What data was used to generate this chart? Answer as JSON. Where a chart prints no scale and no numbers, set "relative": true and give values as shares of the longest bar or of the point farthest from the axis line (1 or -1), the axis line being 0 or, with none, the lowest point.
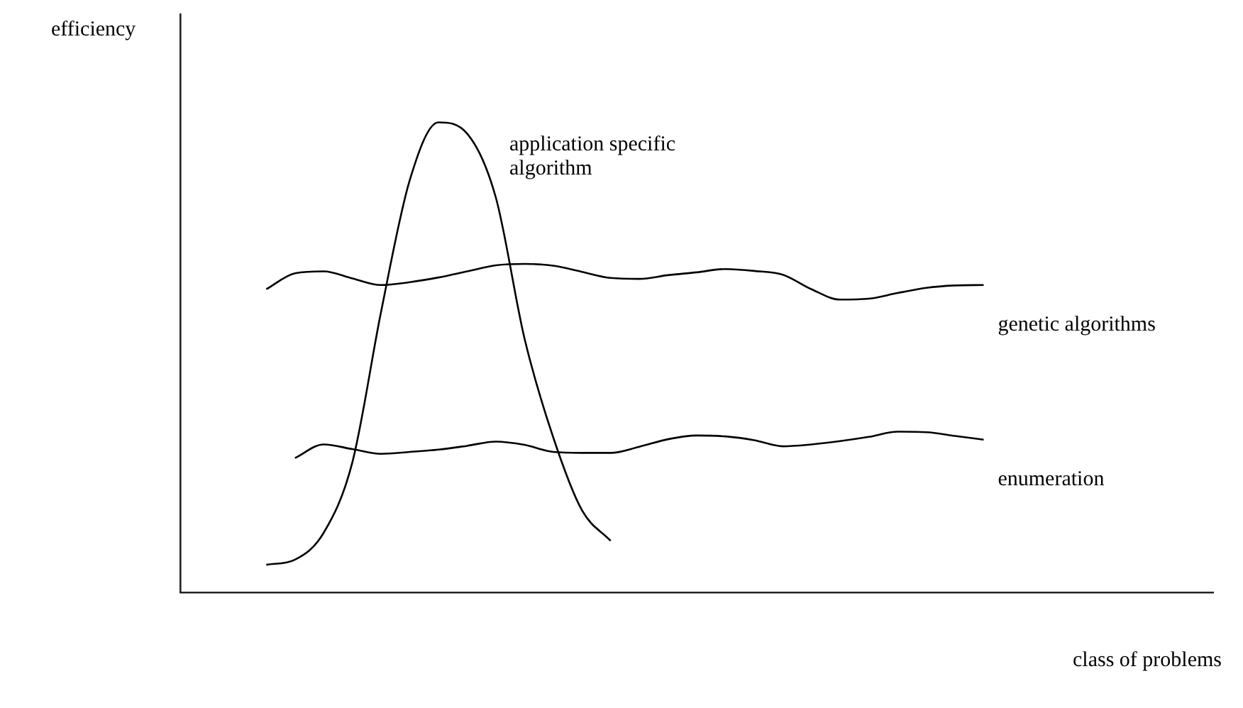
{
  "chart_data": {
    "type": "line",
    "relative": true,
    "xlabel": "class of problems",
    "ylabel": "efficiency",
    "grid": false,
    "legend": false,
    "marker": "none",
    "line_style": "solid",
    "categories": [
      null,
      null,
      null,
      null,
      null,
      null,
      null,
      null,
      null,
      null,
      null,
      null,
      null,
      null,
      null,
      null,
      null,
      null,
      null,
      null,
      null,
      null,
      null,
      null,
      null,
      null,
      null,
      null,
      null,
      null,
      null,
      null,
      null,
      null,
      null,
      null,
      null
    ],
    "series": [
      {
        "name": "application specific algorithm",
        "color": "#000000",
        "values": [
          null,
          null,
          null,
          0.059,
          0.07,
          0.127,
          0.277,
          0.597,
          0.877,
          1,
          0.976,
          0.84,
          0.54,
          0.33,
          0.175,
          0.11,
          null,
          null,
          null,
          null,
          null,
          null,
          null,
          null,
          null,
          null,
          null,
          null,
          null,
          null,
          null,
          null,
          null,
          null,
          null,
          null,
          null
        ]
      },
      {
        "name": "genetic algorithms",
        "color": "#000000",
        "values": [
          null,
          null,
          null,
          0.645,
          0.679,
          0.683,
          0.668,
          0.654,
          0.66,
          0.67,
          0.683,
          0.696,
          0.699,
          0.695,
          0.682,
          0.669,
          0.667,
          0.675,
          0.681,
          0.688,
          0.684,
          0.676,
          0.645,
          0.623,
          0.625,
          0.637,
          0.648,
          0.653,
          0.654,
          null,
          null,
          null,
          null,
          null,
          null,
          null,
          null
        ]
      },
      {
        "name": "enumeration",
        "color": "#000000",
        "values": [
          null,
          null,
          null,
          null,
          0.286,
          0.315,
          0.305,
          0.295,
          0.299,
          0.304,
          0.312,
          0.321,
          0.314,
          0.299,
          0.297,
          0.297,
          0.31,
          0.326,
          0.334,
          0.332,
          0.324,
          0.311,
          0.315,
          0.322,
          0.331,
          0.342,
          0.341,
          0.333,
          0.325,
          null,
          null,
          null,
          null,
          null,
          null,
          null,
          null
        ]
      }
    ]
  }
}
